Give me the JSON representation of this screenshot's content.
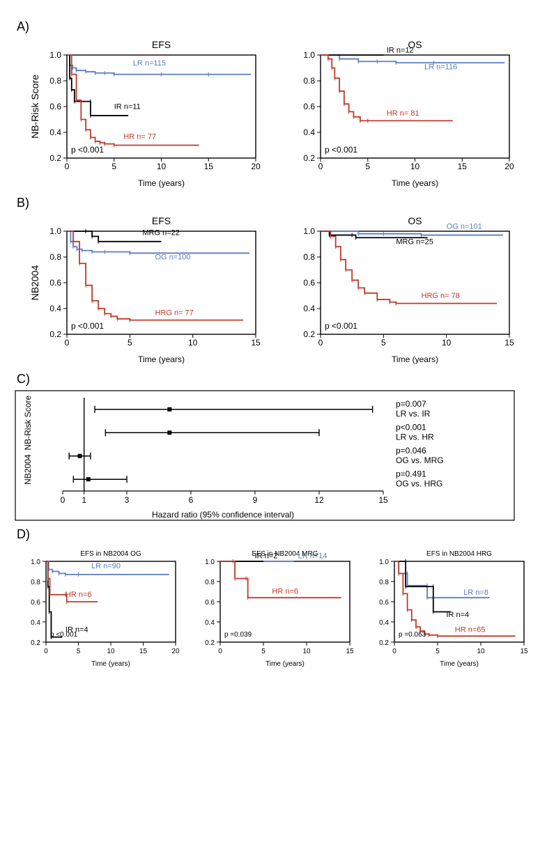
{
  "colors": {
    "lr": "#5b7cc4",
    "ir": "#000000",
    "hr": "#c0392b",
    "axis": "#000000",
    "bg": "#ffffff"
  },
  "fontsizes": {
    "panel_label": 18,
    "title": 14,
    "axis": 12,
    "series": 11,
    "small_axis": 10
  },
  "panelA": {
    "label": "A)",
    "ylab": "NB-Risk Score",
    "left": {
      "title": "EFS",
      "xlabel": "Time (years)",
      "xlim": [
        0,
        20
      ],
      "xticks": [
        0,
        5,
        10,
        15,
        20
      ],
      "ylim": [
        0.2,
        1.0
      ],
      "yticks": [
        0.2,
        0.4,
        0.6,
        0.8,
        1.0
      ],
      "p": "p <0.001",
      "series": {
        "lr": {
          "label": "LR n=115",
          "lx": 7,
          "ly": 0.92,
          "pts": [
            [
              0,
              1.0
            ],
            [
              0.3,
              0.92
            ],
            [
              0.6,
              0.9
            ],
            [
              1.0,
              0.88
            ],
            [
              2.0,
              0.87
            ],
            [
              3.0,
              0.86
            ],
            [
              4.0,
              0.86
            ],
            [
              5.0,
              0.85
            ],
            [
              10,
              0.85
            ],
            [
              15,
              0.85
            ],
            [
              19.5,
              0.85
            ]
          ]
        },
        "ir": {
          "label": "IR n=11",
          "lx": 5,
          "ly": 0.58,
          "pts": [
            [
              0,
              1.0
            ],
            [
              0.3,
              0.82
            ],
            [
              0.5,
              0.73
            ],
            [
              0.8,
              0.64
            ],
            [
              2.5,
              0.64
            ],
            [
              2.5,
              0.53
            ],
            [
              6.5,
              0.53
            ]
          ]
        },
        "hr": {
          "label": "HR n= 77",
          "lx": 6,
          "ly": 0.35,
          "pts": [
            [
              0,
              1.0
            ],
            [
              0.5,
              0.85
            ],
            [
              1.0,
              0.65
            ],
            [
              1.5,
              0.5
            ],
            [
              2.0,
              0.42
            ],
            [
              2.5,
              0.36
            ],
            [
              3.0,
              0.33
            ],
            [
              3.5,
              0.32
            ],
            [
              4.0,
              0.31
            ],
            [
              5.0,
              0.3
            ],
            [
              14,
              0.3
            ]
          ]
        }
      }
    },
    "right": {
      "title": "OS",
      "xlabel": "Time (years)",
      "xlim": [
        0,
        20
      ],
      "xticks": [
        0,
        5,
        10,
        15,
        20
      ],
      "ylim": [
        0.2,
        1.0
      ],
      "yticks": [
        0.2,
        0.4,
        0.6,
        0.8,
        1.0
      ],
      "p": "p <0.001",
      "series": {
        "lr": {
          "label": "LR n=116",
          "lx": 11,
          "ly": 0.89,
          "pts": [
            [
              0,
              1.0
            ],
            [
              2,
              0.97
            ],
            [
              4,
              0.95
            ],
            [
              6,
              0.95
            ],
            [
              8,
              0.94
            ],
            [
              12,
              0.94
            ],
            [
              19.5,
              0.94
            ]
          ]
        },
        "ir": {
          "label": "IR n=12",
          "lx": 7,
          "ly": 1.02,
          "pts": [
            [
              0,
              1.0
            ],
            [
              6.7,
              1.0
            ]
          ]
        },
        "hr": {
          "label": "HR n= 81",
          "lx": 7,
          "ly": 0.53,
          "pts": [
            [
              0,
              1.0
            ],
            [
              0.8,
              0.97
            ],
            [
              1.2,
              0.9
            ],
            [
              1.5,
              0.82
            ],
            [
              2.0,
              0.72
            ],
            [
              2.5,
              0.62
            ],
            [
              3.0,
              0.56
            ],
            [
              3.5,
              0.52
            ],
            [
              4.2,
              0.49
            ],
            [
              5.0,
              0.49
            ],
            [
              14,
              0.49
            ]
          ]
        }
      }
    }
  },
  "panelB": {
    "label": "B)",
    "ylab": "NB2004",
    "left": {
      "title": "EFS",
      "xlabel": "Time (years)",
      "xlim": [
        0,
        15
      ],
      "xticks": [
        0,
        5,
        10,
        15
      ],
      "ylim": [
        0.2,
        1.0
      ],
      "yticks": [
        0.2,
        0.4,
        0.6,
        0.8,
        1.0
      ],
      "p": "p <0.001",
      "series": {
        "lr": {
          "label": "OG n=100",
          "lx": 7,
          "ly": 0.78,
          "pts": [
            [
              0,
              1.0
            ],
            [
              0.3,
              0.92
            ],
            [
              0.5,
              0.88
            ],
            [
              0.8,
              0.86
            ],
            [
              1.2,
              0.85
            ],
            [
              2.0,
              0.84
            ],
            [
              3.0,
              0.84
            ],
            [
              5.0,
              0.83
            ],
            [
              14.5,
              0.83
            ]
          ]
        },
        "ir": {
          "label": "MRG n=22",
          "lx": 6,
          "ly": 0.97,
          "pts": [
            [
              0,
              1.0
            ],
            [
              1.5,
              1.0
            ],
            [
              2.0,
              0.96
            ],
            [
              2.5,
              0.92
            ],
            [
              7.5,
              0.92
            ]
          ]
        },
        "hr": {
          "label": "HRG n= 77",
          "lx": 7,
          "ly": 0.35,
          "pts": [
            [
              0,
              1.0
            ],
            [
              0.5,
              0.92
            ],
            [
              1.0,
              0.75
            ],
            [
              1.5,
              0.58
            ],
            [
              2.0,
              0.46
            ],
            [
              2.5,
              0.4
            ],
            [
              3.0,
              0.36
            ],
            [
              3.5,
              0.34
            ],
            [
              4.0,
              0.32
            ],
            [
              5.0,
              0.31
            ],
            [
              14,
              0.31
            ]
          ]
        }
      }
    },
    "right": {
      "title": "OS",
      "xlabel": "Time (years)",
      "xlim": [
        0,
        15
      ],
      "xticks": [
        0,
        5,
        10,
        15
      ],
      "ylim": [
        0.2,
        1.0
      ],
      "yticks": [
        0.2,
        0.4,
        0.6,
        0.8,
        1.0
      ],
      "p": "p <0.001",
      "series": {
        "lr": {
          "label": "OG n=101",
          "lx": 10,
          "ly": 1.02,
          "pts": [
            [
              0,
              1.0
            ],
            [
              3,
              0.98
            ],
            [
              5,
              0.98
            ],
            [
              8,
              0.97
            ],
            [
              14.5,
              0.97
            ]
          ]
        },
        "ir": {
          "label": "MRG n=25",
          "lx": 6,
          "ly": 0.9,
          "pts": [
            [
              0,
              1.0
            ],
            [
              0.7,
              0.97
            ],
            [
              2.5,
              0.97
            ],
            [
              2.8,
              0.95
            ],
            [
              8.5,
              0.95
            ]
          ]
        },
        "hr": {
          "label": "HRG n= 78",
          "lx": 8,
          "ly": 0.48,
          "pts": [
            [
              0,
              1.0
            ],
            [
              0.8,
              0.96
            ],
            [
              1.2,
              0.88
            ],
            [
              1.6,
              0.78
            ],
            [
              2.0,
              0.7
            ],
            [
              2.5,
              0.62
            ],
            [
              3.0,
              0.56
            ],
            [
              3.5,
              0.52
            ],
            [
              4.5,
              0.47
            ],
            [
              5.5,
              0.45
            ],
            [
              6.0,
              0.44
            ],
            [
              14,
              0.44
            ]
          ]
        }
      }
    }
  },
  "panelC": {
    "label": "C)",
    "xlabel": "Hazard ratio (95% confidence interval)",
    "xlim": [
      0,
      15
    ],
    "xticks": [
      0,
      1,
      3,
      6,
      9,
      12,
      15
    ],
    "ylab_top": "NB-Risk Score",
    "ylab_bot": "NB2004",
    "vline": 1,
    "items": [
      {
        "y": 4,
        "hr": 5.0,
        "lo": 1.5,
        "hi": 14.5,
        "ann1": "p=0.007",
        "ann2": "LR vs. IR"
      },
      {
        "y": 3,
        "hr": 5.0,
        "lo": 2.0,
        "hi": 12.0,
        "ann1": "p<0.001",
        "ann2": "LR vs. HR"
      },
      {
        "y": 2,
        "hr": 0.8,
        "lo": 0.3,
        "hi": 1.3,
        "ann1": "p=0.046",
        "ann2": "OG vs. MRG"
      },
      {
        "y": 1,
        "hr": 1.2,
        "lo": 0.5,
        "hi": 3.0,
        "ann1": "p=0.491",
        "ann2": "OG vs. HRG"
      }
    ]
  },
  "panelD": {
    "label": "D)",
    "plots": [
      {
        "title": "EFS in NB2004 OG",
        "xlabel": "Time (years)",
        "xlim": [
          0,
          20
        ],
        "xticks": [
          0,
          5,
          10,
          15,
          20
        ],
        "ylim": [
          0.2,
          1.0
        ],
        "yticks": [
          0.2,
          0.4,
          0.6,
          0.8,
          1.0
        ],
        "p": "p <0.001",
        "series": {
          "lr": {
            "label": "LR n=90",
            "lx": 7,
            "ly": 0.93,
            "pts": [
              [
                0,
                1.0
              ],
              [
                0.4,
                0.92
              ],
              [
                1,
                0.9
              ],
              [
                2,
                0.88
              ],
              [
                3,
                0.87
              ],
              [
                5,
                0.87
              ],
              [
                19,
                0.87
              ]
            ]
          },
          "ir": {
            "label": "IR n=4",
            "lx": 3,
            "ly": 0.3,
            "pts": [
              [
                0,
                1.0
              ],
              [
                0.3,
                0.75
              ],
              [
                0.5,
                0.5
              ],
              [
                0.8,
                0.25
              ],
              [
                2.5,
                0.25
              ]
            ]
          },
          "hr": {
            "label": "HR n=6",
            "lx": 3,
            "ly": 0.65,
            "pts": [
              [
                0,
                1.0
              ],
              [
                0.3,
                0.83
              ],
              [
                0.6,
                0.67
              ],
              [
                3,
                0.67
              ],
              [
                3.2,
                0.6
              ],
              [
                8,
                0.6
              ]
            ]
          }
        }
      },
      {
        "title": "EFS in NB2004 MRG",
        "xlabel": "Time (years)",
        "xlim": [
          0,
          15
        ],
        "xticks": [
          0,
          5,
          10,
          15
        ],
        "ylim": [
          0.2,
          1.0
        ],
        "yticks": [
          0.2,
          0.4,
          0.6,
          0.8,
          1.0
        ],
        "p": "p =0.039",
        "series": {
          "lr": {
            "label": "LR n=14",
            "lx": 9,
            "ly": 1.03,
            "pts": [
              [
                0,
                1.0
              ],
              [
                8.5,
                1.0
              ]
            ]
          },
          "ir": {
            "label": "IR n=2",
            "lx": 4,
            "ly": 1.03,
            "pts": [
              [
                0,
                1.0
              ],
              [
                5,
                1.0
              ]
            ]
          },
          "hr": {
            "label": "HR n=6",
            "lx": 6,
            "ly": 0.68,
            "pts": [
              [
                0,
                1.0
              ],
              [
                1.5,
                1.0
              ],
              [
                1.7,
                0.83
              ],
              [
                3,
                0.83
              ],
              [
                3.2,
                0.64
              ],
              [
                14,
                0.64
              ]
            ]
          }
        }
      },
      {
        "title": "EFS in NB2004 HRG",
        "xlabel": "Time (years)",
        "xlim": [
          0,
          15
        ],
        "xticks": [
          0,
          5,
          10,
          15
        ],
        "ylim": [
          0.2,
          1.0
        ],
        "yticks": [
          0.2,
          0.4,
          0.6,
          0.8,
          1.0
        ],
        "p": "p =0.063",
        "series": {
          "lr": {
            "label": "LR n=8",
            "lx": 8,
            "ly": 0.67,
            "pts": [
              [
                0,
                1.0
              ],
              [
                0.5,
                0.88
              ],
              [
                1.5,
                0.88
              ],
              [
                1.5,
                0.76
              ],
              [
                3.8,
                0.76
              ],
              [
                3.8,
                0.64
              ],
              [
                11,
                0.64
              ]
            ]
          },
          "ir": {
            "label": "IR n=4",
            "lx": 6,
            "ly": 0.45,
            "pts": [
              [
                0,
                1.0
              ],
              [
                1.3,
                1.0
              ],
              [
                1.3,
                0.75
              ],
              [
                4.5,
                0.75
              ],
              [
                4.5,
                0.5
              ],
              [
                6.5,
                0.5
              ]
            ]
          },
          "hr": {
            "label": "HR n=65",
            "lx": 7,
            "ly": 0.3,
            "pts": [
              [
                0,
                1.0
              ],
              [
                0.5,
                0.88
              ],
              [
                1.0,
                0.68
              ],
              [
                1.5,
                0.52
              ],
              [
                2.0,
                0.42
              ],
              [
                2.5,
                0.35
              ],
              [
                3.0,
                0.31
              ],
              [
                3.5,
                0.28
              ],
              [
                4.0,
                0.27
              ],
              [
                5.0,
                0.26
              ],
              [
                14,
                0.26
              ]
            ]
          }
        }
      }
    ]
  }
}
